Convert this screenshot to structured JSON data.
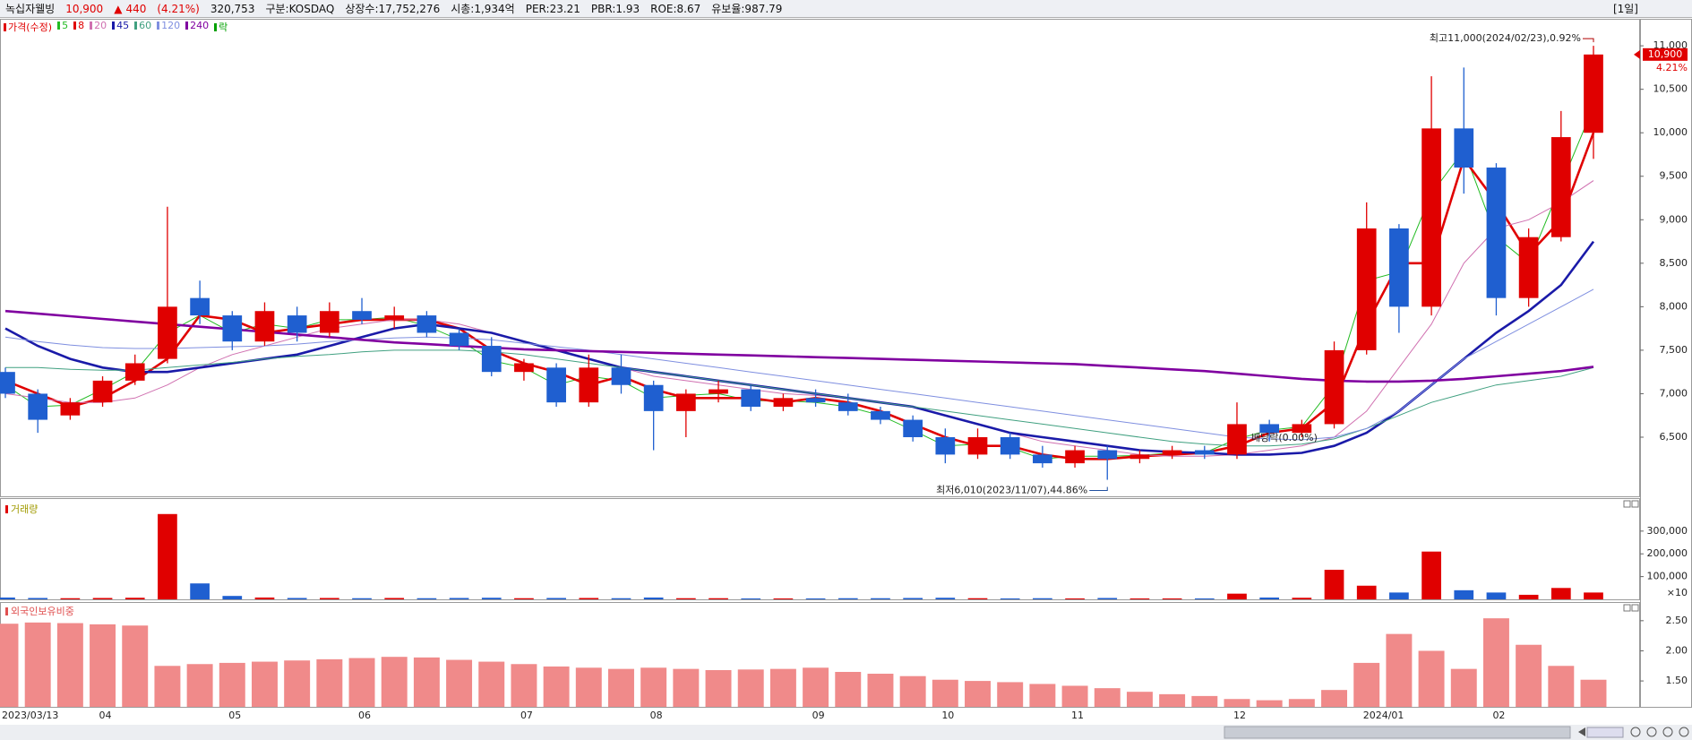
{
  "header": {
    "name": "녹십자웰빙",
    "price": "10,900",
    "arrow": "▲",
    "change": "440",
    "change_pct": "(4.21%)",
    "volume": "320,753",
    "market": "구분:KOSDAQ",
    "shares": "상장수:17,752,276",
    "cap": "시총:1,934억",
    "per": "PER:23.21",
    "pbr": "PBR:1.93",
    "roe": "ROE:8.67",
    "reserve": "유보율:987.79",
    "period": "[1일]"
  },
  "chart_data": [
    {
      "type": "candlestick",
      "name": "가격(수정)",
      "name_color": "#e00000",
      "categories": [
        "2023/03/13",
        null,
        null,
        "04",
        null,
        null,
        null,
        "05",
        null,
        null,
        null,
        "06",
        null,
        null,
        null,
        null,
        "07",
        null,
        null,
        null,
        "08",
        null,
        null,
        null,
        null,
        "09",
        null,
        null,
        null,
        "10",
        null,
        null,
        null,
        "11",
        null,
        null,
        null,
        null,
        "12",
        null,
        null,
        null,
        "2024/01",
        null,
        null,
        null,
        "02",
        null,
        null,
        null
      ],
      "open": [
        7250,
        7000,
        6750,
        6900,
        7150,
        7400,
        8100,
        7900,
        7600,
        7900,
        7700,
        7950,
        7850,
        7900,
        7700,
        7550,
        7250,
        7300,
        6900,
        7300,
        7100,
        6800,
        7000,
        7050,
        6850,
        6950,
        6900,
        6800,
        6700,
        6500,
        6300,
        6500,
        6300,
        6200,
        6350,
        6250,
        6300,
        6350,
        6300,
        6650,
        6550,
        6650,
        7500,
        8900,
        8000,
        10050,
        9600,
        8100,
        8800,
        10000
      ],
      "high": [
        7300,
        7050,
        6950,
        7200,
        7450,
        9150,
        8300,
        7950,
        8050,
        8000,
        8050,
        8100,
        8000,
        7950,
        7750,
        7650,
        7400,
        7350,
        7450,
        7450,
        7150,
        7050,
        7150,
        7100,
        7000,
        7050,
        7000,
        6850,
        6750,
        6600,
        6600,
        6550,
        6400,
        6400,
        6400,
        6350,
        6400,
        6400,
        6900,
        6700,
        6700,
        7600,
        9200,
        8950,
        10650,
        10750,
        9650,
        8900,
        10250,
        11000
      ],
      "low": [
        6950,
        6550,
        6700,
        6850,
        7100,
        7350,
        7800,
        7500,
        7550,
        7600,
        7650,
        7800,
        7750,
        7650,
        7500,
        7200,
        7150,
        6850,
        6850,
        7000,
        6350,
        6500,
        6900,
        6800,
        6800,
        6850,
        6750,
        6650,
        6450,
        6200,
        6250,
        6250,
        6150,
        6150,
        6010,
        6200,
        6250,
        6250,
        6250,
        6450,
        6500,
        6600,
        7450,
        7700,
        7900,
        9300,
        7900,
        8000,
        8750,
        9700
      ],
      "close": [
        7000,
        6700,
        6900,
        7150,
        7350,
        8000,
        7900,
        7600,
        7950,
        7700,
        7950,
        7850,
        7900,
        7700,
        7550,
        7250,
        7350,
        6900,
        7300,
        7100,
        6800,
        7000,
        7050,
        6850,
        6950,
        6900,
        6800,
        6700,
        6500,
        6300,
        6500,
        6300,
        6200,
        6350,
        6250,
        6300,
        6350,
        6300,
        6650,
        6550,
        6650,
        7500,
        8900,
        8000,
        10050,
        9600,
        8100,
        8800,
        9950,
        10900
      ],
      "up_color": "#e00000",
      "down_color": "#1f5fd0",
      "ylim": [
        5820,
        11300
      ],
      "yticks": [
        {
          "value": 6500,
          "label": "6,500"
        },
        {
          "value": 7000,
          "label": "7,000"
        },
        {
          "value": 7500,
          "label": "7,500"
        },
        {
          "value": 8000,
          "label": "8,000"
        },
        {
          "value": 8500,
          "label": "8,500"
        },
        {
          "value": 9000,
          "label": "9,000"
        },
        {
          "value": 9500,
          "label": "9,500"
        },
        {
          "value": 10000,
          "label": "10,000"
        },
        {
          "value": 10500,
          "label": "10,500"
        },
        {
          "value": 11000,
          "label": "11,000"
        }
      ],
      "series": [
        {
          "name": "5",
          "color": "#22bb22",
          "bold": false,
          "values": [
            7100,
            6850,
            6870,
            7050,
            7250,
            7700,
            7900,
            7700,
            7800,
            7750,
            7850,
            7850,
            7880,
            7780,
            7620,
            7380,
            7300,
            7100,
            7200,
            7150,
            6950,
            6980,
            7000,
            6920,
            6920,
            6900,
            6850,
            6750,
            6580,
            6400,
            6420,
            6380,
            6250,
            6280,
            6280,
            6290,
            6320,
            6320,
            6480,
            6580,
            6620,
            7100,
            8300,
            8400,
            9300,
            9800,
            8800,
            8500,
            9400,
            10300
          ]
        },
        {
          "name": "8",
          "color": "#e00000",
          "bold": true,
          "values": [
            7150,
            7000,
            6850,
            6950,
            7150,
            7400,
            7900,
            7850,
            7700,
            7750,
            7800,
            7850,
            7850,
            7850,
            7750,
            7500,
            7350,
            7250,
            7100,
            7200,
            7050,
            6950,
            6950,
            6950,
            6900,
            6950,
            6900,
            6800,
            6650,
            6500,
            6400,
            6400,
            6300,
            6250,
            6250,
            6280,
            6300,
            6320,
            6400,
            6550,
            6600,
            6900,
            7800,
            8500,
            8500,
            9700,
            9200,
            8600,
            9000,
            10000
          ]
        },
        {
          "name": "20",
          "color": "#d070b0",
          "bold": false,
          "values": [
            7000,
            6950,
            6900,
            6900,
            6950,
            7100,
            7300,
            7450,
            7550,
            7650,
            7750,
            7800,
            7850,
            7850,
            7800,
            7700,
            7600,
            7500,
            7400,
            7300,
            7200,
            7150,
            7100,
            7050,
            7000,
            6980,
            6950,
            6900,
            6850,
            6750,
            6650,
            6550,
            6450,
            6400,
            6350,
            6300,
            6280,
            6280,
            6300,
            6350,
            6400,
            6500,
            6800,
            7300,
            7800,
            8500,
            8900,
            9000,
            9200,
            9450
          ]
        },
        {
          "name": "45",
          "color": "#1a1aa8",
          "bold": true,
          "values": [
            7750,
            7550,
            7400,
            7300,
            7250,
            7250,
            7300,
            7350,
            7400,
            7450,
            7550,
            7650,
            7750,
            7800,
            7750,
            7700,
            7600,
            7500,
            7400,
            7300,
            7250,
            7200,
            7150,
            7100,
            7050,
            7000,
            6950,
            6900,
            6850,
            6750,
            6650,
            6550,
            6500,
            6450,
            6400,
            6350,
            6330,
            6320,
            6300,
            6300,
            6320,
            6400,
            6550,
            6800,
            7100,
            7400,
            7700,
            7950,
            8250,
            8750
          ]
        },
        {
          "name": "60",
          "color": "#40a080",
          "bold": false,
          "values": [
            7300,
            7300,
            7280,
            7270,
            7270,
            7300,
            7330,
            7360,
            7400,
            7430,
            7450,
            7480,
            7500,
            7500,
            7500,
            7480,
            7450,
            7400,
            7350,
            7300,
            7250,
            7200,
            7150,
            7100,
            7050,
            7000,
            6950,
            6900,
            6850,
            6800,
            6750,
            6700,
            6650,
            6600,
            6550,
            6500,
            6450,
            6420,
            6400,
            6400,
            6420,
            6480,
            6600,
            6750,
            6900,
            7000,
            7100,
            7150,
            7200,
            7300
          ]
        },
        {
          "name": "120",
          "color": "#7f8fe0",
          "bold": false,
          "values": [
            7650,
            7600,
            7560,
            7530,
            7520,
            7520,
            7530,
            7540,
            7550,
            7570,
            7600,
            7620,
            7640,
            7650,
            7640,
            7620,
            7580,
            7540,
            7500,
            7450,
            7400,
            7350,
            7300,
            7250,
            7200,
            7150,
            7100,
            7050,
            7000,
            6950,
            6900,
            6850,
            6800,
            6750,
            6700,
            6650,
            6600,
            6550,
            6500,
            6480,
            6470,
            6500,
            6600,
            6800,
            7100,
            7400,
            7600,
            7800,
            8000,
            8200
          ]
        },
        {
          "name": "240",
          "color": "#8000a0",
          "bold": true,
          "values": [
            7950,
            7920,
            7890,
            7860,
            7830,
            7800,
            7770,
            7740,
            7710,
            7680,
            7650,
            7620,
            7590,
            7570,
            7550,
            7530,
            7510,
            7500,
            7490,
            7480,
            7470,
            7460,
            7450,
            7440,
            7430,
            7420,
            7410,
            7400,
            7390,
            7380,
            7370,
            7360,
            7350,
            7340,
            7320,
            7300,
            7280,
            7260,
            7230,
            7200,
            7170,
            7150,
            7140,
            7140,
            7150,
            7170,
            7200,
            7230,
            7260,
            7310
          ]
        }
      ],
      "ex_rights_label": "락",
      "ex_rights_color": "#00a000",
      "annotations": {
        "high": "최고11,000(2024/02/23),0.92%",
        "low": "최저6,010(2023/11/07),44.86%",
        "ex_rights": "배당락(0.00%)"
      },
      "last_label": "10,900",
      "last_change_label": "4.21%"
    },
    {
      "type": "volume",
      "name": "거래량",
      "name_color": "#a09a00",
      "unit_label": "×10",
      "values": [
        8000,
        6000,
        5000,
        6000,
        7000,
        375000,
        70000,
        15000,
        8000,
        6000,
        6000,
        5000,
        6000,
        5000,
        6000,
        7000,
        5000,
        6000,
        6000,
        5000,
        8000,
        5000,
        5000,
        4000,
        4000,
        4000,
        5000,
        5000,
        6000,
        7000,
        5000,
        4000,
        5000,
        4000,
        6000,
        4000,
        4000,
        4000,
        25000,
        8000,
        7000,
        130000,
        60000,
        30000,
        210000,
        40000,
        30000,
        20000,
        50000,
        30000
      ],
      "up_color": "#e00000",
      "down_color": "#1f5fd0",
      "ylim": [
        0,
        445000
      ],
      "yticks": [
        {
          "value": 100000,
          "label": "100,000"
        },
        {
          "value": 200000,
          "label": "200,000"
        },
        {
          "value": 300000,
          "label": "300,000"
        }
      ]
    },
    {
      "type": "bar",
      "name": "외국인보유비중",
      "name_color": "#e05050",
      "color": "#f08a8a",
      "values": [
        2.45,
        2.47,
        2.46,
        2.44,
        2.42,
        1.75,
        1.78,
        1.8,
        1.82,
        1.84,
        1.86,
        1.88,
        1.9,
        1.89,
        1.85,
        1.82,
        1.78,
        1.74,
        1.72,
        1.7,
        1.72,
        1.7,
        1.68,
        1.69,
        1.7,
        1.72,
        1.65,
        1.62,
        1.58,
        1.52,
        1.5,
        1.48,
        1.45,
        1.42,
        1.38,
        1.32,
        1.28,
        1.25,
        1.2,
        1.18,
        1.2,
        1.35,
        1.8,
        2.28,
        2.0,
        1.7,
        2.54,
        2.1,
        1.75,
        1.52
      ],
      "ylim": [
        1.07,
        2.81
      ],
      "yticks": [
        {
          "value": 1.5,
          "label": "1.50"
        },
        {
          "value": 2,
          "label": "2.00"
        },
        {
          "value": 2.5,
          "label": "2.50"
        }
      ]
    }
  ]
}
